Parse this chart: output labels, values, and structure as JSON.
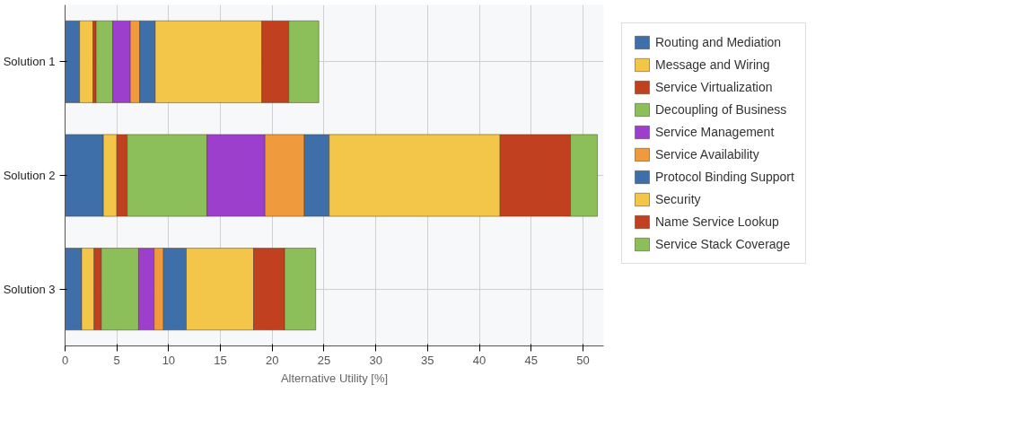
{
  "chart_data": {
    "type": "bar",
    "orientation": "horizontal",
    "stacked": true,
    "categories": [
      "Solution 1",
      "Solution 2",
      "Solution 3"
    ],
    "series": [
      {
        "name": "Routing and Mediation",
        "color": "#3e6fa8",
        "values": [
          1.4,
          3.7,
          1.6
        ]
      },
      {
        "name": "Message and Wiring",
        "color": "#f3c64a",
        "values": [
          1.3,
          1.3,
          1.2
        ]
      },
      {
        "name": "Service Virtualization",
        "color": "#c0401f",
        "values": [
          0.3,
          1.0,
          0.7
        ]
      },
      {
        "name": "Decoupling of Business",
        "color": "#8cbf5a",
        "values": [
          1.6,
          7.7,
          3.6
        ]
      },
      {
        "name": "Service Management",
        "color": "#9b3fcc",
        "values": [
          1.7,
          5.6,
          1.5
        ]
      },
      {
        "name": "Service Availability",
        "color": "#f09a3e",
        "values": [
          0.9,
          3.8,
          0.9
        ]
      },
      {
        "name": "Protocol Binding Support",
        "color": "#3e6fa8",
        "values": [
          1.5,
          2.4,
          2.2
        ]
      },
      {
        "name": "Security",
        "color": "#f3c64a",
        "values": [
          10.3,
          16.5,
          6.5
        ]
      },
      {
        "name": "Name Service Lookup",
        "color": "#c0401f",
        "values": [
          2.6,
          6.8,
          3.0
        ]
      },
      {
        "name": "Service Stack Coverage",
        "color": "#8cbf5a",
        "values": [
          2.9,
          2.6,
          3.0
        ]
      }
    ],
    "xlabel": "Alternative Utility [%]",
    "xlim": [
      0,
      52
    ],
    "xticks": [
      0,
      5,
      10,
      15,
      20,
      25,
      30,
      35,
      40,
      45,
      50
    ],
    "grid": true,
    "legend": "right"
  }
}
